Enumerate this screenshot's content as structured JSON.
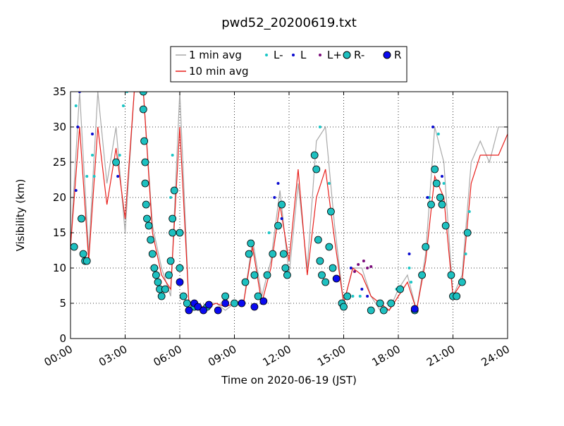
{
  "chart_data": {
    "type": "line",
    "title": "pwd52_20200619.txt",
    "x_label": "Time on 2020-06-19 (JST)",
    "y_label": "Visibility (km)",
    "xlim": [
      0,
      24
    ],
    "ylim": [
      0,
      35
    ],
    "xticks": [
      {
        "value": 0,
        "label": "00:00"
      },
      {
        "value": 3,
        "label": "03:00"
      },
      {
        "value": 6,
        "label": "06:00"
      },
      {
        "value": 9,
        "label": "09:00"
      },
      {
        "value": 12,
        "label": "12:00"
      },
      {
        "value": 15,
        "label": "15:00"
      },
      {
        "value": 18,
        "label": "18:00"
      },
      {
        "value": 21,
        "label": "21:00"
      },
      {
        "value": 24,
        "label": "24:00"
      }
    ],
    "yticks": [
      0,
      5,
      10,
      15,
      20,
      25,
      30,
      35
    ],
    "grid": true,
    "legend": "top",
    "series": [
      {
        "name": "1 min avg",
        "type": "line",
        "color": "#a9a9a9",
        "x": [
          0,
          0.5,
          1,
          1.5,
          2,
          2.5,
          3,
          3.5,
          4,
          4.5,
          5,
          5.5,
          6,
          6.5,
          7,
          7.5,
          8,
          8.5,
          9,
          9.5,
          10,
          10.5,
          11,
          11.5,
          12,
          12.5,
          13,
          13.5,
          14,
          14.5,
          15,
          15.5,
          16,
          16.5,
          17,
          17.5,
          18,
          18.5,
          19,
          19.5,
          20,
          20.5,
          21,
          21.5,
          22,
          22.5,
          23,
          23.5,
          24
        ],
        "values": [
          13,
          35,
          12,
          35,
          22,
          30,
          15,
          35,
          35,
          16,
          10,
          6,
          35,
          5,
          4,
          5,
          5,
          4,
          5,
          5,
          14,
          6,
          11,
          21,
          9,
          22,
          10,
          28,
          30,
          16,
          5,
          10,
          10,
          6,
          4,
          4,
          7,
          9,
          4,
          12,
          30,
          25,
          6,
          9,
          25,
          28,
          25,
          30,
          30
        ]
      },
      {
        "name": "10 min avg",
        "type": "line",
        "color": "#e8201c",
        "x": [
          0,
          0.5,
          1,
          1.5,
          2,
          2.5,
          3,
          3.5,
          4,
          4.5,
          5,
          5.5,
          6,
          6.5,
          7,
          7.5,
          8,
          8.5,
          9,
          9.5,
          10,
          10.5,
          11,
          11.5,
          12,
          12.5,
          13,
          13.5,
          14,
          14.5,
          15,
          15.5,
          16,
          16.5,
          17,
          17.5,
          18,
          18.5,
          19,
          19.5,
          20,
          20.5,
          21,
          21.5,
          22,
          22.5,
          23,
          23.5,
          24
        ],
        "values": [
          13,
          30,
          11,
          30,
          19,
          27,
          17,
          35,
          35,
          15,
          9,
          7,
          30,
          5,
          4.5,
          4.5,
          5,
          4.5,
          5,
          5,
          13,
          5,
          10,
          19,
          11,
          24,
          9,
          20,
          24,
          14,
          5,
          10,
          9,
          6,
          5,
          4,
          6,
          8,
          4,
          11,
          23,
          20,
          6,
          8,
          22,
          26,
          26,
          26,
          29
        ]
      },
      {
        "name": "L-",
        "type": "scatter",
        "marker": "dot",
        "color": "#1ac6c6",
        "x": [
          0.3,
          0.9,
          1.2,
          1.3,
          2.7,
          2.9,
          3.1,
          5.5,
          5.6,
          10.9,
          11.6,
          13.7,
          14.2,
          15.5,
          15.9,
          17.9,
          18.6,
          18.7,
          19.7,
          20.2,
          20.5,
          21.7,
          21.9
        ],
        "values": [
          33,
          23,
          26,
          23,
          26,
          33,
          35,
          20,
          26,
          15,
          17,
          30,
          22,
          6,
          6,
          7,
          10,
          8,
          20,
          29,
          22,
          12,
          18
        ]
      },
      {
        "name": "L",
        "type": "scatter",
        "marker": "dot",
        "color": "#0a0ad0",
        "x": [
          0.3,
          0.4,
          0.5,
          1.2,
          2.6,
          4.0,
          6.6,
          7.2,
          10.5,
          11.2,
          11.4,
          11.6,
          13.5,
          15.4,
          16.0,
          16.3,
          18.6,
          19.6,
          19.9,
          20.4
        ],
        "values": [
          21,
          30,
          35,
          29,
          23,
          35,
          5,
          4,
          5,
          20,
          22,
          17,
          26,
          10,
          7,
          6,
          12,
          20,
          30,
          23
        ]
      },
      {
        "name": "L+",
        "type": "scatter",
        "marker": "dot",
        "color": "#7a0a7a",
        "x": [
          15.6,
          15.8,
          16.1,
          16.3,
          16.5
        ],
        "values": [
          9.5,
          10.5,
          11,
          10,
          10.2
        ]
      },
      {
        "name": "R-",
        "type": "scatter",
        "marker": "circle",
        "color": "#1ec0c0",
        "edgecolor": "#000000",
        "x": [
          0.2,
          0.6,
          0.7,
          0.8,
          0.9,
          2.5,
          4.0,
          4.0,
          4.05,
          4.1,
          4.1,
          4.15,
          4.2,
          4.3,
          4.4,
          4.5,
          4.6,
          4.7,
          4.8,
          4.9,
          5.0,
          5.2,
          5.4,
          5.5,
          5.6,
          5.6,
          5.7,
          6.0,
          6.0,
          6.2,
          6.4,
          6.8,
          7.5,
          8.5,
          9.0,
          9.6,
          9.8,
          9.9,
          10.1,
          10.3,
          10.8,
          11.1,
          11.4,
          11.6,
          11.7,
          11.8,
          11.9,
          13.4,
          13.5,
          13.6,
          13.7,
          13.8,
          14.0,
          14.3,
          14.2,
          14.4,
          14.9,
          15.0,
          15.2,
          16.5,
          17.0,
          17.2,
          17.6,
          18.1,
          18.9,
          19.3,
          19.5,
          19.8,
          20.0,
          20.1,
          20.3,
          20.4,
          20.6,
          20.9,
          21.0,
          21.2,
          21.5,
          21.8
        ],
        "values": [
          13,
          17,
          12,
          11,
          11,
          25,
          35,
          32.5,
          28,
          25,
          22,
          19,
          17,
          16,
          14,
          12,
          10,
          9,
          8,
          7,
          6,
          7,
          9,
          11,
          15,
          17,
          21,
          15,
          10,
          6,
          5,
          4.5,
          4.5,
          6,
          5,
          8,
          12,
          13.5,
          9,
          6,
          9,
          12,
          16,
          19,
          12,
          10,
          9,
          26,
          24,
          14,
          11,
          9,
          8,
          18,
          13,
          10,
          5,
          4.5,
          6,
          4,
          5,
          4,
          5,
          7,
          4,
          9,
          13,
          19,
          24,
          22,
          20,
          19,
          16,
          9,
          6,
          6,
          8,
          15
        ]
      },
      {
        "name": "R",
        "type": "scatter",
        "marker": "circle",
        "color": "#0a0af0",
        "edgecolor": "#000000",
        "x": [
          6.0,
          6.5,
          6.8,
          7.0,
          7.3,
          7.6,
          8.1,
          8.5,
          9.4,
          10.1,
          10.6,
          14.6,
          18.9
        ],
        "values": [
          8,
          4,
          5,
          4.5,
          4,
          4.8,
          4,
          5,
          5,
          4.5,
          5.3,
          8.5,
          4.2
        ]
      }
    ]
  }
}
